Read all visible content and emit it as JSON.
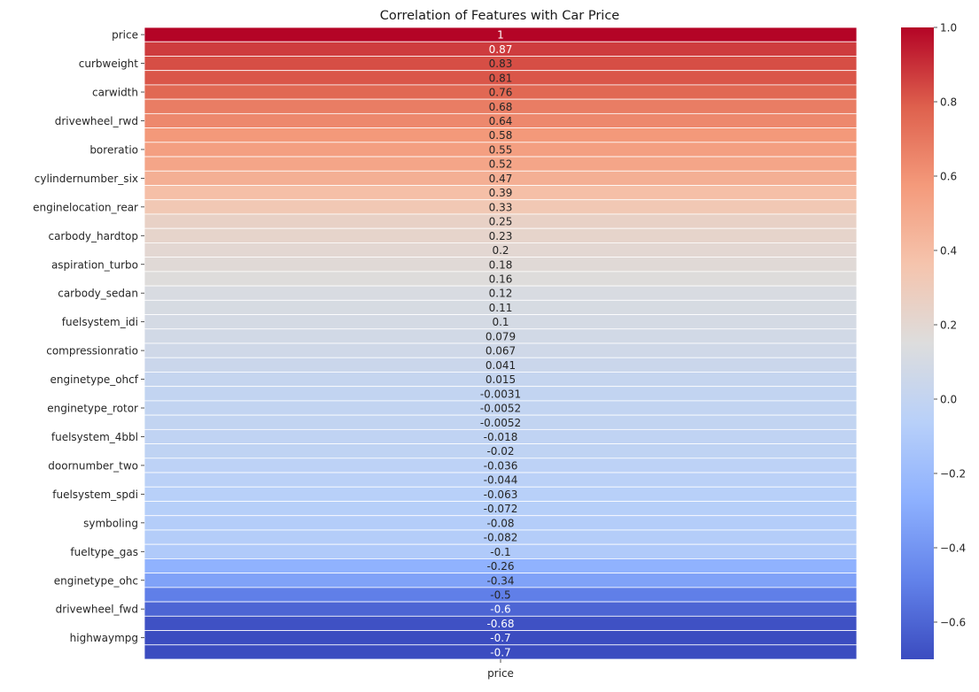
{
  "chart_data": {
    "type": "heatmap",
    "title": "Correlation of Features with Car Price",
    "columns": [
      "price"
    ],
    "rows": [
      {
        "label": "price",
        "value": 1,
        "text": "1",
        "show_label": true
      },
      {
        "label": "",
        "value": 0.87,
        "text": "0.87",
        "show_label": false
      },
      {
        "label": "curbweight",
        "value": 0.83,
        "text": "0.83",
        "show_label": true
      },
      {
        "label": "",
        "value": 0.81,
        "text": "0.81",
        "show_label": false
      },
      {
        "label": "carwidth",
        "value": 0.76,
        "text": "0.76",
        "show_label": true
      },
      {
        "label": "",
        "value": 0.68,
        "text": "0.68",
        "show_label": false
      },
      {
        "label": "drivewheel_rwd",
        "value": 0.64,
        "text": "0.64",
        "show_label": true
      },
      {
        "label": "",
        "value": 0.58,
        "text": "0.58",
        "show_label": false
      },
      {
        "label": "boreratio",
        "value": 0.55,
        "text": "0.55",
        "show_label": true
      },
      {
        "label": "",
        "value": 0.52,
        "text": "0.52",
        "show_label": false
      },
      {
        "label": "cylindernumber_six",
        "value": 0.47,
        "text": "0.47",
        "show_label": true
      },
      {
        "label": "",
        "value": 0.39,
        "text": "0.39",
        "show_label": false
      },
      {
        "label": "enginelocation_rear",
        "value": 0.33,
        "text": "0.33",
        "show_label": true
      },
      {
        "label": "",
        "value": 0.25,
        "text": "0.25",
        "show_label": false
      },
      {
        "label": "carbody_hardtop",
        "value": 0.23,
        "text": "0.23",
        "show_label": true
      },
      {
        "label": "",
        "value": 0.2,
        "text": "0.2",
        "show_label": false
      },
      {
        "label": "aspiration_turbo",
        "value": 0.18,
        "text": "0.18",
        "show_label": true
      },
      {
        "label": "",
        "value": 0.16,
        "text": "0.16",
        "show_label": false
      },
      {
        "label": "carbody_sedan",
        "value": 0.12,
        "text": "0.12",
        "show_label": true
      },
      {
        "label": "",
        "value": 0.11,
        "text": "0.11",
        "show_label": false
      },
      {
        "label": "fuelsystem_idi",
        "value": 0.1,
        "text": "0.1",
        "show_label": true
      },
      {
        "label": "",
        "value": 0.079,
        "text": "0.079",
        "show_label": false
      },
      {
        "label": "compressionratio",
        "value": 0.067,
        "text": "0.067",
        "show_label": true
      },
      {
        "label": "",
        "value": 0.041,
        "text": "0.041",
        "show_label": false
      },
      {
        "label": "enginetype_ohcf",
        "value": 0.015,
        "text": "0.015",
        "show_label": true
      },
      {
        "label": "",
        "value": -0.0031,
        "text": "-0.0031",
        "show_label": false
      },
      {
        "label": "enginetype_rotor",
        "value": -0.0052,
        "text": "-0.0052",
        "show_label": true
      },
      {
        "label": "",
        "value": -0.0052,
        "text": "-0.0052",
        "show_label": false
      },
      {
        "label": "fuelsystem_4bbl",
        "value": -0.018,
        "text": "-0.018",
        "show_label": true
      },
      {
        "label": "",
        "value": -0.02,
        "text": "-0.02",
        "show_label": false
      },
      {
        "label": "doornumber_two",
        "value": -0.036,
        "text": "-0.036",
        "show_label": true
      },
      {
        "label": "",
        "value": -0.044,
        "text": "-0.044",
        "show_label": false
      },
      {
        "label": "fuelsystem_spdi",
        "value": -0.063,
        "text": "-0.063",
        "show_label": true
      },
      {
        "label": "",
        "value": -0.072,
        "text": "-0.072",
        "show_label": false
      },
      {
        "label": "symboling",
        "value": -0.08,
        "text": "-0.08",
        "show_label": true
      },
      {
        "label": "",
        "value": -0.082,
        "text": "-0.082",
        "show_label": false
      },
      {
        "label": "fueltype_gas",
        "value": -0.1,
        "text": "-0.1",
        "show_label": true
      },
      {
        "label": "",
        "value": -0.26,
        "text": "-0.26",
        "show_label": false
      },
      {
        "label": "enginetype_ohc",
        "value": -0.34,
        "text": "-0.34",
        "show_label": true
      },
      {
        "label": "",
        "value": -0.5,
        "text": "-0.5",
        "show_label": false
      },
      {
        "label": "drivewheel_fwd",
        "value": -0.6,
        "text": "-0.6",
        "show_label": true
      },
      {
        "label": "",
        "value": -0.68,
        "text": "-0.68",
        "show_label": false
      },
      {
        "label": "highwaympg",
        "value": -0.7,
        "text": "-0.7",
        "show_label": true
      },
      {
        "label": "",
        "value": -0.7,
        "text": "-0.7",
        "show_label": false
      }
    ],
    "colorbar": {
      "colormap": "coolwarm",
      "vmin": -0.7,
      "vmax": 1.0,
      "ticks": [
        1.0,
        0.8,
        0.6,
        0.4,
        0.2,
        0.0,
        -0.2,
        -0.4,
        -0.6
      ],
      "tick_labels": [
        "1.0",
        "0.8",
        "0.6",
        "0.4",
        "0.2",
        "0.0",
        "−0.2",
        "−0.4",
        "−0.6"
      ]
    },
    "annotations": true,
    "grid": false,
    "legend": "colorbar-right"
  }
}
